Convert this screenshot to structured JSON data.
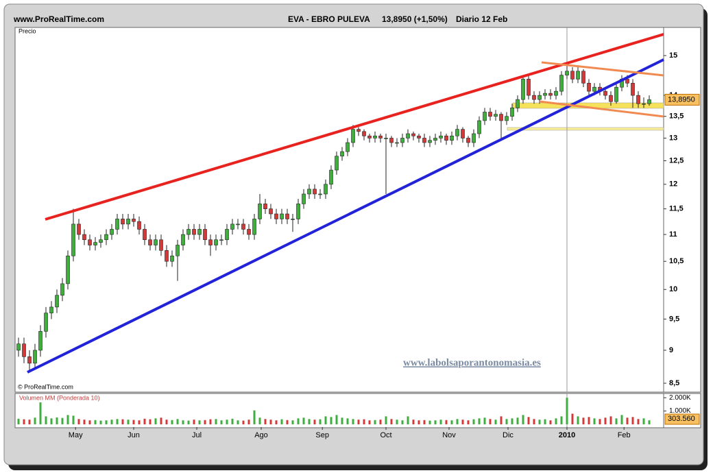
{
  "chart_data": {
    "type": "candlestick",
    "site": "www.ProRealTime.com",
    "symbol": "EVA - EBRO PULEVA",
    "quote": "13,8950 (+1,50%)",
    "period": "Diario  12 Feb",
    "price_label": "Precio",
    "copyright": "© ProRealTime.com",
    "watermark": "www.labolsaporantonomasia.es",
    "log_scale": true,
    "up_color": "#3fae3f",
    "down_color": "#d23a3a",
    "last_price": {
      "value": 13.895,
      "label": "13,8950"
    },
    "xlim": [
      -0.625,
      117.625
    ],
    "xticks": [
      {
        "value": 10.4,
        "label": "May"
      },
      {
        "value": 21,
        "label": "Jun"
      },
      {
        "value": 32.5,
        "label": "Jul"
      },
      {
        "value": 44.25,
        "label": "Ago"
      },
      {
        "value": 55.4,
        "label": "Sep"
      },
      {
        "value": 67,
        "label": "Oct"
      },
      {
        "value": 78.5,
        "label": "Nov"
      },
      {
        "value": 89.25,
        "label": "Dic"
      },
      {
        "value": 100,
        "label": "2010"
      },
      {
        "value": 110.4,
        "label": "Feb"
      }
    ],
    "ylim": [
      8.39,
      15.75
    ],
    "yticks": [
      15,
      14,
      {
        "value": 13.5,
        "label": "13,5"
      },
      13,
      {
        "value": 12.5,
        "label": "12,5"
      },
      12,
      {
        "value": 11.5,
        "label": "11,5"
      },
      11,
      {
        "value": 10.5,
        "label": "10,5"
      },
      10,
      {
        "value": 9.5,
        "label": "9,5"
      },
      9,
      {
        "value": 8.5,
        "label": "8,5"
      }
    ],
    "open": [
      9.0,
      9.1,
      8.9,
      8.8,
      9.0,
      9.3,
      9.6,
      9.7,
      9.9,
      10.1,
      10.6,
      11.2,
      11.0,
      10.9,
      10.8,
      10.85,
      10.9,
      11.0,
      11.1,
      11.3,
      11.2,
      11.3,
      11.25,
      11.1,
      10.9,
      10.8,
      10.9,
      10.7,
      10.5,
      10.6,
      10.8,
      11.0,
      11.1,
      11.0,
      11.1,
      10.9,
      10.8,
      10.9,
      10.9,
      11.1,
      11.2,
      11.2,
      11.1,
      11.0,
      11.3,
      11.6,
      11.5,
      11.4,
      11.3,
      11.4,
      11.3,
      11.3,
      11.6,
      11.8,
      11.9,
      11.8,
      11.8,
      12.0,
      12.3,
      12.6,
      12.7,
      12.9,
      13.2,
      13.15,
      13.05,
      13.0,
      13.05,
      13.0,
      13.0,
      12.9,
      12.9,
      13.0,
      13.1,
      13.05,
      13.0,
      12.9,
      12.95,
      13.0,
      13.05,
      12.95,
      13.05,
      13.2,
      13.0,
      12.9,
      13.1,
      13.4,
      13.6,
      13.5,
      13.55,
      13.4,
      13.5,
      13.7,
      13.9,
      14.4,
      14.0,
      13.9,
      14.0,
      14.05,
      14.0,
      14.1,
      14.5,
      14.6,
      14.4,
      14.6,
      14.3,
      14.1,
      14.2,
      14.1,
      14.0,
      13.85,
      14.2,
      14.4,
      14.3,
      14.0,
      13.8,
      13.8
    ],
    "high": [
      9.2,
      9.2,
      9.0,
      9.1,
      9.4,
      9.7,
      9.8,
      10.0,
      10.2,
      10.7,
      11.5,
      11.3,
      11.1,
      11.0,
      10.95,
      11.0,
      11.1,
      11.2,
      11.4,
      11.4,
      11.4,
      11.4,
      11.35,
      11.2,
      11.0,
      11.0,
      11.0,
      10.8,
      10.7,
      10.9,
      11.1,
      11.2,
      11.2,
      11.2,
      11.2,
      11.0,
      11.0,
      11.0,
      11.2,
      11.3,
      11.3,
      11.3,
      11.2,
      11.4,
      11.8,
      11.7,
      11.6,
      11.5,
      11.5,
      11.5,
      11.4,
      11.7,
      11.9,
      12.0,
      12.0,
      11.9,
      12.1,
      12.4,
      12.7,
      12.8,
      13.0,
      13.3,
      13.25,
      13.2,
      13.1,
      13.15,
      13.1,
      13.1,
      13.05,
      13.0,
      13.1,
      13.2,
      13.15,
      13.1,
      13.1,
      13.05,
      13.1,
      13.15,
      13.1,
      13.15,
      13.3,
      13.25,
      13.05,
      13.2,
      13.5,
      13.7,
      13.7,
      13.65,
      13.6,
      13.6,
      13.8,
      14.0,
      14.5,
      14.5,
      14.1,
      14.1,
      14.15,
      14.15,
      14.2,
      14.6,
      14.75,
      14.7,
      14.7,
      14.65,
      14.4,
      14.3,
      14.3,
      14.2,
      14.1,
      14.3,
      14.5,
      14.5,
      14.4,
      14.1,
      13.95,
      14.0
    ],
    "low": [
      8.9,
      8.8,
      8.7,
      8.7,
      8.9,
      9.2,
      9.5,
      9.6,
      9.8,
      10.0,
      10.5,
      10.9,
      10.8,
      10.7,
      10.7,
      10.75,
      10.8,
      10.9,
      11.0,
      11.1,
      11.1,
      11.15,
      11.0,
      10.8,
      10.7,
      10.7,
      10.6,
      10.4,
      10.4,
      10.15,
      10.7,
      10.9,
      10.9,
      10.9,
      10.8,
      10.6,
      10.7,
      10.8,
      10.8,
      11.0,
      11.1,
      11.0,
      10.9,
      10.9,
      11.2,
      11.4,
      11.3,
      11.2,
      11.2,
      11.2,
      11.05,
      11.2,
      11.5,
      11.7,
      11.7,
      11.7,
      11.7,
      11.9,
      12.2,
      12.5,
      12.6,
      12.8,
      13.05,
      12.95,
      12.9,
      12.9,
      12.9,
      11.8,
      12.8,
      12.8,
      12.8,
      12.9,
      12.95,
      12.9,
      12.8,
      12.8,
      12.85,
      12.9,
      12.85,
      12.85,
      12.95,
      12.9,
      12.8,
      12.8,
      13.0,
      13.3,
      13.4,
      13.4,
      13.0,
      13.3,
      13.4,
      13.6,
      13.8,
      13.9,
      13.8,
      13.8,
      13.9,
      13.9,
      13.9,
      14.0,
      14.4,
      14.3,
      14.3,
      14.2,
      14.0,
      14.0,
      14.0,
      13.9,
      13.75,
      13.8,
      14.1,
      14.2,
      13.7,
      13.7,
      13.7,
      13.75
    ],
    "close": [
      9.1,
      8.9,
      8.8,
      9.0,
      9.3,
      9.6,
      9.7,
      9.9,
      10.1,
      10.6,
      11.2,
      11.0,
      10.9,
      10.8,
      10.85,
      10.9,
      11.0,
      11.1,
      11.3,
      11.2,
      11.3,
      11.25,
      11.1,
      10.9,
      10.8,
      10.9,
      10.7,
      10.5,
      10.6,
      10.8,
      11.0,
      11.1,
      11.0,
      11.1,
      10.9,
      10.8,
      10.9,
      10.9,
      11.1,
      11.2,
      11.2,
      11.1,
      11.0,
      11.3,
      11.6,
      11.5,
      11.4,
      11.3,
      11.4,
      11.3,
      11.3,
      11.6,
      11.8,
      11.9,
      11.8,
      11.8,
      12.0,
      12.3,
      12.6,
      12.7,
      12.9,
      13.2,
      13.15,
      13.05,
      13.0,
      13.05,
      13.0,
      13.0,
      12.9,
      12.9,
      13.0,
      13.1,
      13.05,
      13.0,
      12.9,
      12.95,
      13.0,
      13.05,
      12.95,
      13.05,
      13.2,
      13.0,
      12.9,
      13.1,
      13.4,
      13.6,
      13.5,
      13.55,
      13.4,
      13.5,
      13.7,
      13.9,
      14.4,
      14.0,
      13.9,
      14.0,
      14.05,
      14.0,
      14.1,
      14.5,
      14.6,
      14.4,
      14.6,
      14.3,
      14.1,
      14.2,
      14.1,
      14.0,
      13.85,
      14.2,
      14.4,
      14.3,
      14.0,
      13.8,
      13.8,
      13.895
    ],
    "volume": {
      "title": "Volumen MM (Ponderada 10)",
      "ylim": [
        0,
        2320000
      ],
      "yticks": [
        {
          "value": 2000000,
          "label": "2.000K"
        },
        {
          "value": 1000000,
          "label": "1.000K"
        }
      ],
      "last": {
        "value": 303560,
        "label": "303.560"
      },
      "values": [
        420000,
        380000,
        350000,
        500000,
        1650000,
        600000,
        450000,
        520000,
        480000,
        700000,
        650000,
        400000,
        350000,
        300000,
        320000,
        280000,
        300000,
        350000,
        400000,
        380000,
        350000,
        330000,
        300000,
        420000,
        380000,
        450000,
        500000,
        350000,
        320000,
        400000,
        300000,
        280000,
        350000,
        300000,
        320000,
        380000,
        400000,
        300000,
        350000,
        420000,
        300000,
        280000,
        350000,
        1050000,
        500000,
        400000,
        350000,
        300000,
        380000,
        320000,
        300000,
        450000,
        500000,
        400000,
        350000,
        380000,
        600000,
        550000,
        700000,
        500000,
        450000,
        400000,
        350000,
        380000,
        300000,
        320000,
        350000,
        600000,
        400000,
        350000,
        300000,
        600000,
        350000,
        300000,
        320000,
        280000,
        300000,
        350000,
        320000,
        300000,
        400000,
        350000,
        300000,
        380000,
        450000,
        500000,
        400000,
        350000,
        600000,
        400000,
        450000,
        500000,
        700000,
        550000,
        400000,
        350000,
        380000,
        300000,
        450000,
        600000,
        2000000,
        800000,
        600000,
        500000,
        550000,
        450000,
        400000,
        500000,
        600000,
        450000,
        700000,
        500000,
        550000,
        400000,
        450000,
        303560
      ]
    }
  }
}
